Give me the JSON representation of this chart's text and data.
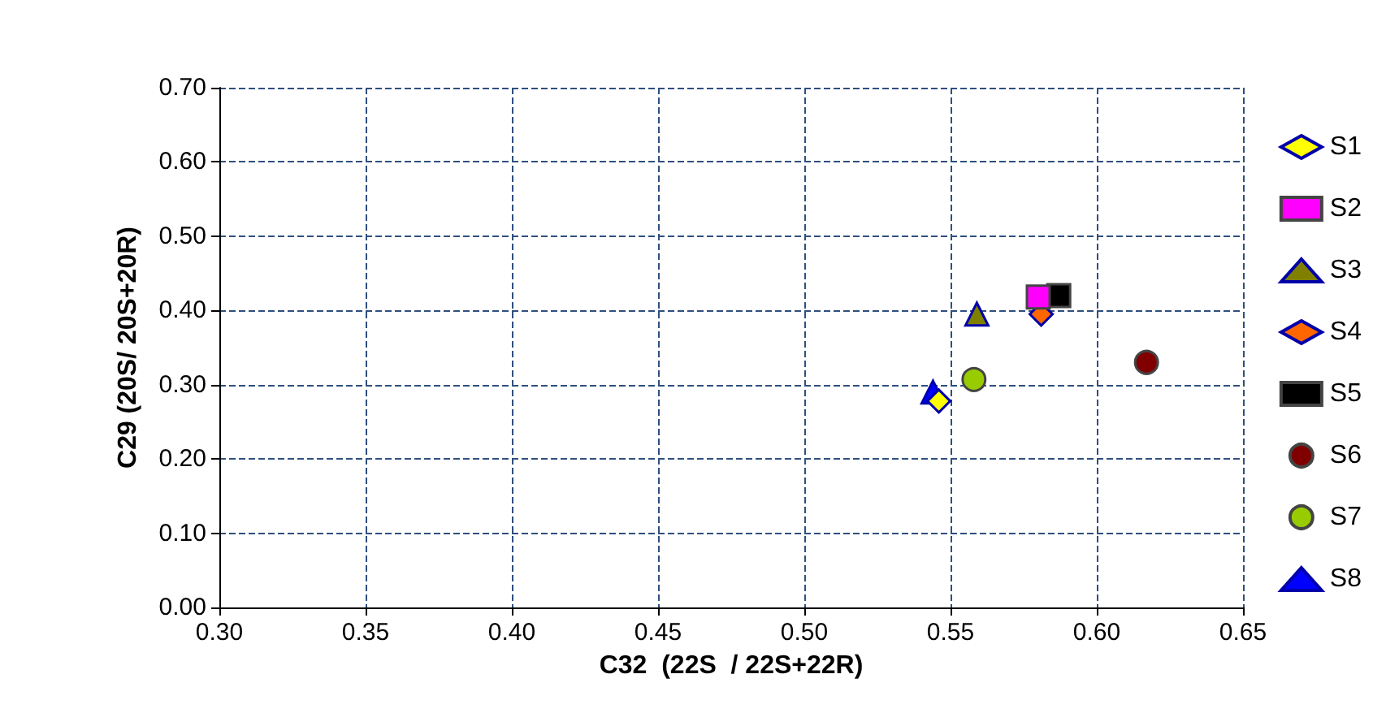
{
  "chart_data": {
    "type": "scatter",
    "xlabel": "C32  (22S  / 22S+22R)",
    "ylabel": "C29 (20S/ 20S+20R)",
    "xlim": [
      0.3,
      0.65
    ],
    "xticks": [
      {
        "value": 0.3,
        "label": "0.30"
      },
      {
        "value": 0.35,
        "label": "0.35"
      },
      {
        "value": 0.4,
        "label": "0.40"
      },
      {
        "value": 0.45,
        "label": "0.45"
      },
      {
        "value": 0.5,
        "label": "0.50"
      },
      {
        "value": 0.55,
        "label": "0.55"
      },
      {
        "value": 0.6,
        "label": "0.60"
      },
      {
        "value": 0.65,
        "label": "0.65"
      }
    ],
    "ylim": [
      0,
      0.7
    ],
    "yticks": [
      {
        "value": 0,
        "label": "0.00"
      },
      {
        "value": 0.1,
        "label": "0.10"
      },
      {
        "value": 0.2,
        "label": "0.20"
      },
      {
        "value": 0.3,
        "label": "0.30"
      },
      {
        "value": 0.4,
        "label": "0.40"
      },
      {
        "value": 0.5,
        "label": "0.50"
      },
      {
        "value": 0.6,
        "label": "0.60"
      },
      {
        "value": 0.7,
        "label": "0.70"
      }
    ],
    "grid": true,
    "legend": "right",
    "series": [
      {
        "name": "S1",
        "color": "#ffff00",
        "marker": "diamond",
        "x": [
          0.546
        ],
        "values": [
          0.278
        ]
      },
      {
        "name": "S2",
        "color": "#ff00ff",
        "marker": "square",
        "x": [
          0.58
        ],
        "values": [
          0.418
        ]
      },
      {
        "name": "S3",
        "color": "#808000",
        "marker": "triangle",
        "x": [
          0.559
        ],
        "values": [
          0.395
        ]
      },
      {
        "name": "S4",
        "color": "#ff6600",
        "marker": "diamond",
        "x": [
          0.581
        ],
        "values": [
          0.395
        ]
      },
      {
        "name": "S5",
        "color": "#000000",
        "marker": "square",
        "x": [
          0.587
        ],
        "values": [
          0.42
        ]
      },
      {
        "name": "S6",
        "color": "#800000",
        "marker": "circle",
        "x": [
          0.617
        ],
        "values": [
          0.33
        ]
      },
      {
        "name": "S7",
        "color": "#99cc00",
        "marker": "circle",
        "x": [
          0.558
        ],
        "values": [
          0.307
        ]
      },
      {
        "name": "S8",
        "color": "#0000ff",
        "marker": "triangle",
        "x": [
          0.544
        ],
        "values": [
          0.29
        ]
      }
    ]
  }
}
